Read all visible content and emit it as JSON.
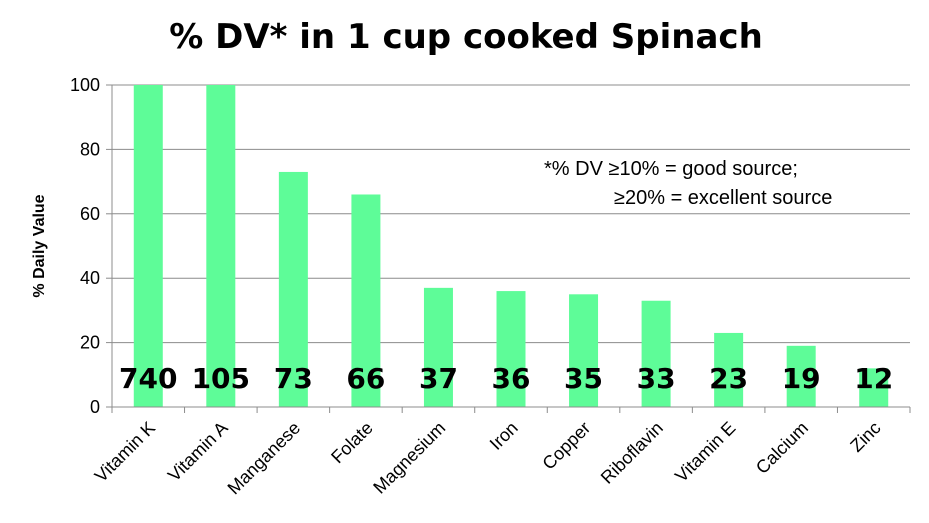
{
  "chart_data": {
    "type": "bar",
    "title": "% DV* in 1 cup cooked Spinach",
    "xlabel": "",
    "ylabel": "% Daily Value",
    "ylim": [
      0,
      100
    ],
    "yticks": [
      0,
      20,
      40,
      60,
      80,
      100
    ],
    "grid": true,
    "categories": [
      "Vitamin K",
      "Vitamin A",
      "Manganese",
      "Folate",
      "Magnesium",
      "Iron",
      "Copper",
      "Riboflavin",
      "Vitamin E",
      "Calcium",
      "Zinc"
    ],
    "values": [
      740,
      105,
      73,
      66,
      37,
      36,
      35,
      33,
      23,
      19,
      12
    ],
    "data_labels": [
      "740",
      "105",
      "73",
      "66",
      "37",
      "36",
      "35",
      "33",
      "23",
      "19",
      "12"
    ],
    "bar_color": "#5efc98",
    "annotation": [
      "*% DV ≥10% = good source;",
      "≥20% = excellent source"
    ]
  }
}
